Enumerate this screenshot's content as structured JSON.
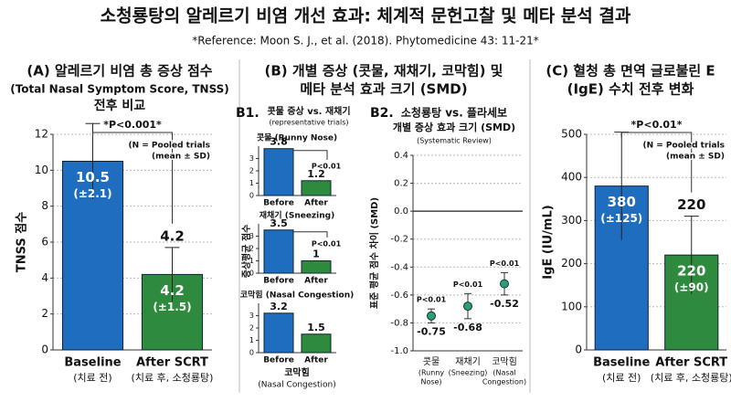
{
  "title": "소청룡탕의 알레르기 비염 개선 효과: 체계적 문헌고찰 및 메타 분석 결과",
  "reference": "*Reference: Moon S. J., et al. (2018). Phytomedicine 43: 11-21*",
  "chart_data": [
    {
      "type": "bar",
      "title": "(A) 알레르기 비염 총 증상 점수",
      "subtitle": "(Total Nasal Symptom Score, TNSS)",
      "subtitle2": "전후 비교",
      "categories": [
        "Baseline",
        "After SCRT"
      ],
      "category_notes": [
        "(치료 전)",
        "(치료 후, 소청룡탕)"
      ],
      "values": [
        10.5,
        4.2
      ],
      "errors": [
        2.1,
        1.5
      ],
      "error_labels": [
        "(±2.1)",
        "(±1.5)"
      ],
      "colors": [
        "#1f6dbf",
        "#2e8b3e"
      ],
      "ylabel": "TNSS 점수",
      "ylim": [
        0,
        12
      ],
      "yticks": [
        0,
        2,
        4,
        6,
        8,
        10,
        12
      ],
      "grid": true,
      "annotation": "*P<0.001*",
      "note": [
        "(N = Pooled trials",
        "(mean ± SD)"
      ]
    },
    {
      "type": "multiples",
      "title": "(B) 개별 증상 (콧물, 재채기, 코막힘) 및",
      "subtitle": "메타 분석 효과 크기 (SMD)",
      "label": "B1.",
      "panel_title": "콧물 증상 vs. 재채기",
      "panel_subtitle": "(representative trials)",
      "ylabel": "증상평균 점수",
      "categories": [
        "Before",
        "After"
      ],
      "colors": [
        "#1f6dbf",
        "#2e8b3e"
      ],
      "ylim": [
        0,
        4
      ],
      "yticks": [
        0,
        1,
        2,
        3
      ],
      "panels": [
        {
          "title": "콧물 (Runny Nose)",
          "values": [
            3.8,
            1.2
          ],
          "annotation": "P<0.01"
        },
        {
          "title": "재채기 (Sneezing)",
          "values": [
            3.5,
            1.0
          ],
          "annotation": "P<0.01"
        },
        {
          "title": "코막힘 (Nasal Congestion)",
          "values": [
            3.2,
            1.5
          ]
        }
      ],
      "footer": [
        "코막힘",
        "(Nasal Congestion)"
      ]
    },
    {
      "type": "errorbar",
      "label": "B2.",
      "title": "소청룡탕 vs. 플라세보",
      "subtitle": "개별 증상 효과 크기 (SMD)",
      "subtitle2": "(Systematic Review)",
      "ylabel": "표준 평균 점수 차이 (SMD)",
      "categories": [
        "콧물",
        "재채기",
        "코막힘"
      ],
      "category_notes": [
        [
          "(Runny",
          "Nose)"
        ],
        [
          "(Sneezing)"
        ],
        [
          "(Nasal",
          "Congestion)"
        ]
      ],
      "values": [
        -0.75,
        -0.68,
        -0.52
      ],
      "errors": [
        0.05,
        0.09,
        0.08
      ],
      "annotations": [
        "P<0.01",
        "P<0.01",
        "P<0.01"
      ],
      "color": "#2e9e6e",
      "ylim": [
        -1.0,
        0.4
      ],
      "yticks": [
        {
          "value": -1.0,
          "label": "-1.0"
        },
        -0.8,
        -0.6,
        -0.4,
        -0.2,
        {
          "value": 0,
          "label": "0.0"
        },
        0.2,
        0.4
      ],
      "grid": true
    },
    {
      "type": "bar",
      "title": "(C) 혈청 총 면역 글로불린 E",
      "subtitle": "(IgE) 수치 전후 변화",
      "categories": [
        "Baseline",
        "After SCRT"
      ],
      "category_notes": [
        "(치료 전)",
        "(치료 후, 소청룡탕)"
      ],
      "values": [
        380,
        220
      ],
      "errors": [
        125,
        90
      ],
      "error_labels": [
        "(±125)",
        "(±90)"
      ],
      "colors": [
        "#1f6dbf",
        "#2e8b3e"
      ],
      "ylabel": "IgE (IU/mL)",
      "ylim": [
        0,
        500
      ],
      "yticks": [
        0,
        100,
        200,
        300,
        400,
        500
      ],
      "grid": true,
      "annotation": "*P<0.01*",
      "note": [
        "(N = Pooled trials",
        "(mean ± SD)"
      ]
    }
  ]
}
